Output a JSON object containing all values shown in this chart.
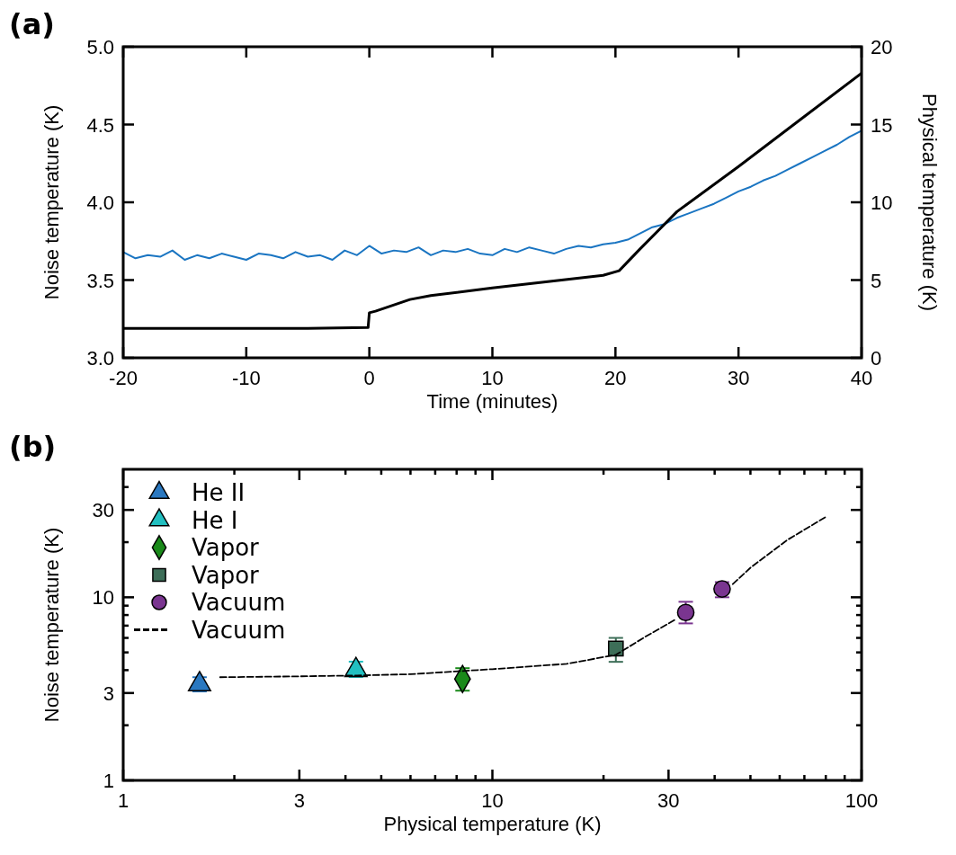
{
  "chart_data": [
    {
      "type": "line",
      "title": "(a)",
      "xlabel": "Time (minutes)",
      "ylabel": "Noise temperature (K)",
      "y2label": "Physical temperature (K)",
      "xlim": [
        -20,
        40
      ],
      "xticks": [
        -20,
        -10,
        0,
        10,
        20,
        30,
        40
      ],
      "ylim": [
        3,
        5
      ],
      "yticks": [
        {
          "value": 3,
          "label": "3.0"
        },
        3.5,
        {
          "value": 4,
          "label": "4.0"
        },
        4.5,
        {
          "value": 5,
          "label": "5.0"
        }
      ],
      "y2lim": [
        0,
        20
      ],
      "y2ticks": [
        0,
        5,
        10,
        15,
        20
      ],
      "series": [
        {
          "color": "#1a75c2",
          "x": [
            -20,
            -19,
            -18,
            -17,
            -16,
            -15,
            -14,
            -13,
            -12,
            -11,
            -10,
            -9,
            -8,
            -7,
            -6,
            -5,
            -4,
            -3,
            -2,
            -1,
            0,
            1,
            2,
            3,
            4,
            5,
            6,
            7,
            8,
            9,
            10,
            11,
            12,
            13,
            14,
            15,
            16,
            17,
            18,
            19,
            20,
            21,
            22,
            23,
            24,
            25,
            26,
            27,
            28,
            29,
            30,
            31,
            32,
            33,
            34,
            35,
            36,
            37,
            38,
            39,
            40
          ],
          "values": [
            3.68,
            3.64,
            3.66,
            3.65,
            3.69,
            3.63,
            3.66,
            3.64,
            3.67,
            3.65,
            3.63,
            3.67,
            3.66,
            3.64,
            3.68,
            3.65,
            3.66,
            3.63,
            3.69,
            3.66,
            3.72,
            3.67,
            3.69,
            3.68,
            3.71,
            3.66,
            3.69,
            3.68,
            3.7,
            3.67,
            3.66,
            3.7,
            3.68,
            3.71,
            3.69,
            3.67,
            3.7,
            3.72,
            3.71,
            3.73,
            3.74,
            3.76,
            3.8,
            3.84,
            3.86,
            3.9,
            3.93,
            3.96,
            3.99,
            4.03,
            4.07,
            4.1,
            4.14,
            4.17,
            4.21,
            4.25,
            4.29,
            4.33,
            4.37,
            4.42,
            4.46
          ]
        },
        {
          "color": "#000000",
          "axis": "y2",
          "x": [
            -20,
            -5,
            -0.1,
            0,
            0.5,
            3.3,
            5,
            10,
            19,
            20.3,
            22,
            25,
            30,
            35,
            40
          ],
          "values": [
            1.9,
            1.9,
            1.95,
            2.9,
            3.0,
            3.75,
            4.0,
            4.5,
            5.3,
            5.6,
            7.0,
            9.4,
            12.3,
            15.3,
            18.3
          ]
        }
      ]
    },
    {
      "type": "scatter",
      "title": "(b)",
      "xlabel": "Physical temperature (K)",
      "ylabel": "Noise temperature (K)",
      "log": "xy",
      "legend": "top left",
      "xlim": [
        1,
        100
      ],
      "xticks": [
        1,
        {
          "value": 2,
          "label": null
        },
        3,
        {
          "value": 4,
          "label": null
        },
        {
          "value": 5,
          "label": null
        },
        {
          "value": 6,
          "label": null
        },
        {
          "value": 7,
          "label": null
        },
        {
          "value": 8,
          "label": null
        },
        {
          "value": 9,
          "label": null
        },
        10,
        {
          "value": 20,
          "label": null
        },
        30,
        {
          "value": 40,
          "label": null
        },
        {
          "value": 50,
          "label": null
        },
        {
          "value": 60,
          "label": null
        },
        {
          "value": 70,
          "label": null
        },
        {
          "value": 80,
          "label": null
        },
        {
          "value": 90,
          "label": null
        },
        100
      ],
      "ylim": [
        1,
        50
      ],
      "yticks": [
        1,
        {
          "value": 2,
          "label": null
        },
        3,
        {
          "value": 4,
          "label": null
        },
        {
          "value": 5,
          "label": null
        },
        {
          "value": 6,
          "label": null
        },
        {
          "value": 7,
          "label": null
        },
        {
          "value": 8,
          "label": null
        },
        {
          "value": 9,
          "label": null
        },
        10,
        {
          "value": 20,
          "label": null
        },
        30,
        {
          "value": 40,
          "label": null
        }
      ],
      "series": [
        {
          "name": "He II",
          "color": "#2a78c0",
          "marker": "triangle",
          "x": [
            1.61
          ],
          "values": [
            3.35
          ],
          "errors": [
            [
              3.06,
              3.66
            ]
          ]
        },
        {
          "name": "He I",
          "color": "#22bfc0",
          "marker": "triangle",
          "x": [
            4.27
          ],
          "values": [
            4.0
          ],
          "errors": [
            [
              3.67,
              4.45
            ]
          ]
        },
        {
          "name": "Vapor",
          "color": "#1a8a1a",
          "marker": "diamond",
          "x": [
            8.3
          ],
          "values": [
            3.58
          ],
          "errors": [
            [
              3.09,
              4.1
            ]
          ]
        },
        {
          "name": "Vapor",
          "color": "#3d6e58",
          "marker": "square",
          "x": [
            21.6
          ],
          "values": [
            5.25
          ],
          "errors": [
            [
              4.44,
              6.0
            ]
          ]
        },
        {
          "name": "Vacuum",
          "color": "#7a3590",
          "marker": "circle",
          "x": [
            33.4,
            41.9
          ],
          "values": [
            8.26,
            11.1
          ],
          "errors": [
            [
              7.2,
              9.45
            ],
            [
              10,
              12.1
            ]
          ]
        },
        {
          "name": "Vacuum",
          "type": "line",
          "color": "#000000",
          "line_style": "dashed",
          "x": [
            1.83,
            3,
            4.3,
            6,
            10,
            15.9,
            21.6,
            26,
            31.1,
            37,
            44.8,
            50,
            62.8,
            80.3
          ],
          "values": [
            3.66,
            3.7,
            3.74,
            3.8,
            4.05,
            4.33,
            4.85,
            6.1,
            7.5,
            null,
            11.8,
            14.5,
            20.5,
            27.6
          ]
        }
      ]
    }
  ]
}
